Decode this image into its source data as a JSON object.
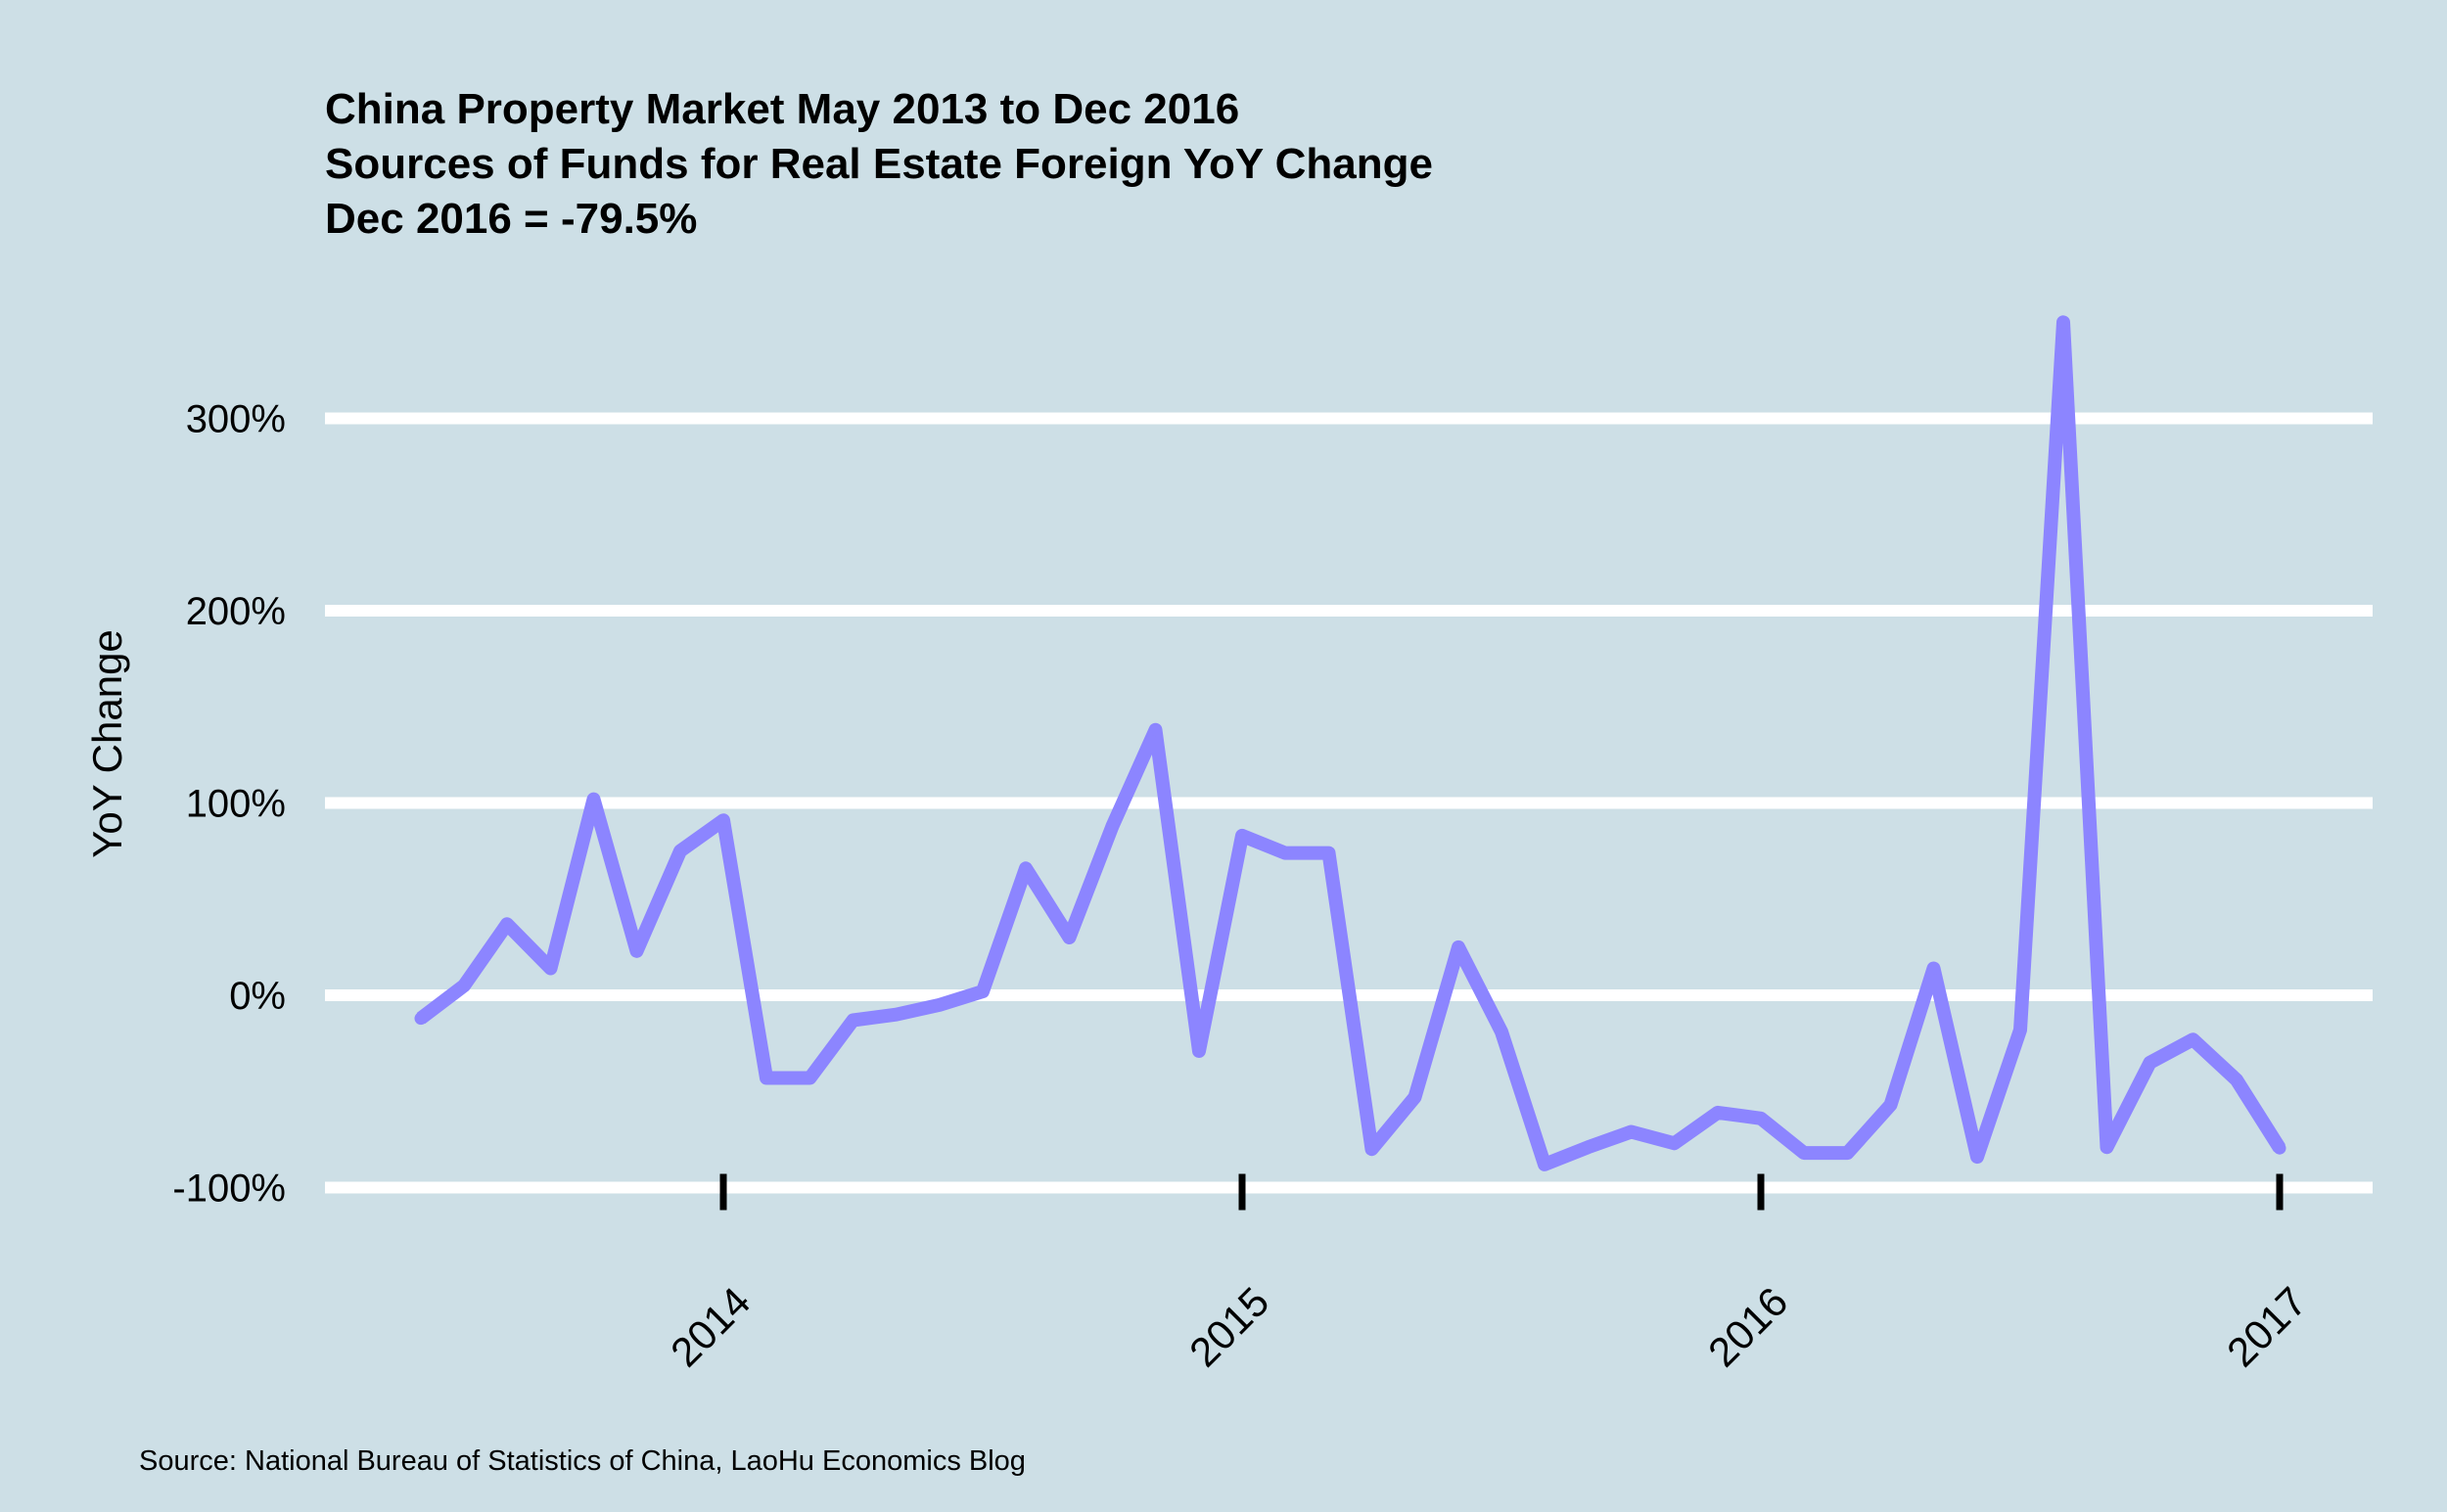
{
  "chart_data": {
    "type": "line",
    "title_lines": [
      "China Property Market May 2013 to Dec 2016",
      "Sources of Funds for Real Estate Foreign YoY Change",
      "Dec 2016 = -79.5%"
    ],
    "xlabel": "",
    "ylabel": "YoY Change",
    "ylim": [
      -100,
      350
    ],
    "y_ticks": [
      -100,
      0,
      100,
      200,
      300
    ],
    "y_tick_labels": [
      "-100%",
      "0%",
      "100%",
      "200%",
      "300%"
    ],
    "x_ticks": [
      2014,
      2015,
      2016,
      2017
    ],
    "x_tick_labels": [
      "2014",
      "2015",
      "2016",
      "2017"
    ],
    "x_range": [
      2013.2,
      2017.2
    ],
    "grid": "horizontal",
    "line_color": "#8c85ff",
    "source": "Source: National Bureau of Statistics of China, LaoHu Economics Blog",
    "series": [
      {
        "name": "Sources of Funds for Real Estate Foreign YoY Change",
        "x": [
          2013.417,
          2013.5,
          2013.583,
          2013.667,
          2013.75,
          2013.833,
          2013.917,
          2014.0,
          2014.083,
          2014.167,
          2014.25,
          2014.333,
          2014.417,
          2014.5,
          2014.583,
          2014.667,
          2014.75,
          2014.833,
          2014.917,
          2015.0,
          2015.083,
          2015.167,
          2015.25,
          2015.333,
          2015.417,
          2015.5,
          2015.583,
          2015.667,
          2015.75,
          2015.833,
          2015.917,
          2016.0,
          2016.083,
          2016.167,
          2016.25,
          2016.333,
          2016.417,
          2016.5,
          2016.583,
          2016.667,
          2016.75,
          2016.833,
          2016.917,
          2017.0
        ],
        "values": [
          -12,
          5,
          37,
          14,
          102,
          23,
          75,
          91,
          -43,
          -43,
          -13,
          -10,
          -5,
          2,
          66,
          30,
          88,
          138,
          -29,
          83,
          74,
          74,
          -80,
          -53,
          25,
          -19,
          -88,
          -79,
          -71,
          -77,
          -61,
          -64,
          -82,
          -82,
          -57,
          14,
          -84,
          -18,
          350,
          -79,
          -35,
          -23,
          -44,
          -79.5
        ]
      }
    ]
  }
}
